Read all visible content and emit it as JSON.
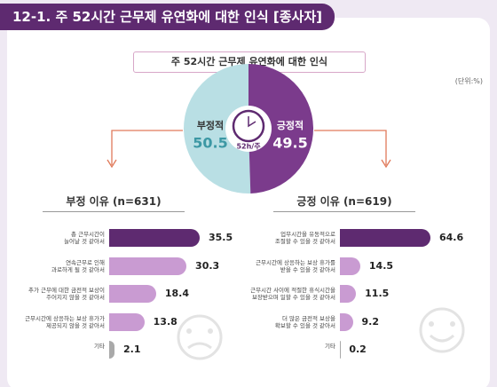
{
  "header": {
    "title": "12-1. 주 52시간 근무제 유연화에 대한 인식 [종사자]"
  },
  "chart_data": [
    {
      "type": "pie",
      "title": "주 52시간 근무제 유연화에 대한 인식",
      "unit": "(단위:%)",
      "center_label": "52h/주",
      "categories": [
        "부정적",
        "긍정적"
      ],
      "values": [
        50.5,
        49.5
      ],
      "colors": [
        "#b9dfe4",
        "#7b3b8c"
      ]
    },
    {
      "type": "bar",
      "orientation": "horizontal",
      "title": "부정 이유 (n=631)",
      "categories": [
        "총 근무시간이\n늘어날 것 같아서",
        "연속근무로 인해\n과로하게 될 것 같아서",
        "추가 근무에 대한 금전적 보상이\n주어지지 않을 것 같아서",
        "근무시간에 상응하는 보상 휴가가\n제공되지 않을 것 같아서",
        "기타"
      ],
      "values": [
        35.5,
        30.3,
        18.4,
        13.8,
        2.1
      ],
      "colors": [
        "#5e2a70",
        "#c99bd2",
        "#c99bd2",
        "#c99bd2",
        "#a9a9a9"
      ]
    },
    {
      "type": "bar",
      "orientation": "horizontal",
      "title": "긍정 이유 (n=619)",
      "categories": [
        "업무시간을 유동적으로\n조절할 수 있을 것 같아서",
        "근무시간에 상응하는 보상 휴가를\n받을 수 있을 것 같아서",
        "근무시간 사이에 적절한 휴식시간을\n보장받으며 일할 수 있을 것 같아서",
        "더 많은 금전적 보상을\n확보할 수 있을 것 같아서",
        "기타"
      ],
      "values": [
        64.6,
        14.5,
        11.5,
        9.2,
        0.2
      ],
      "colors": [
        "#5e2a70",
        "#c99bd2",
        "#c99bd2",
        "#c99bd2",
        "#a9a9a9"
      ]
    }
  ]
}
